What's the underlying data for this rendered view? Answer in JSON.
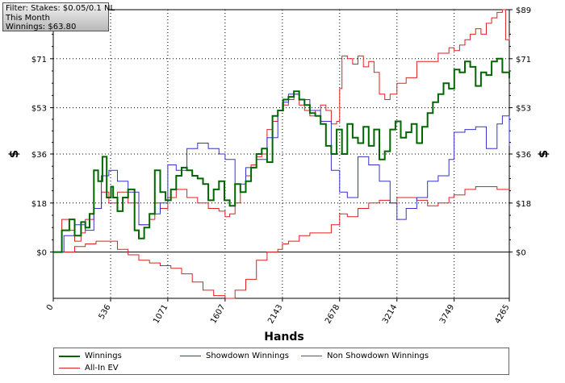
{
  "filter": {
    "line1": "Filter: Stakes: $0.05/0.1 NL",
    "line2": "This Month",
    "line3": "Winnings: $63.80"
  },
  "chart_data": {
    "type": "line",
    "xlabel": "Hands",
    "ylabel_left": "$",
    "ylabel_right": "$",
    "xlim": [
      0,
      4265
    ],
    "ylim": [
      -17,
      89
    ],
    "x_ticks": [
      0,
      536,
      1071,
      1607,
      2143,
      2678,
      3214,
      3749,
      4265
    ],
    "y_ticks": [
      0,
      18,
      36,
      53,
      71,
      89
    ],
    "y_tick_labels": [
      "$0",
      "$18",
      "$36",
      "$53",
      "$71",
      "$89"
    ],
    "grid": true,
    "legend_position": "bottom",
    "series": [
      {
        "name": "Winnings",
        "color": "#006600",
        "x": [
          0,
          80,
          150,
          200,
          260,
          300,
          340,
          380,
          420,
          460,
          500,
          540,
          560,
          600,
          650,
          700,
          760,
          800,
          850,
          900,
          950,
          1000,
          1050,
          1100,
          1150,
          1200,
          1250,
          1300,
          1350,
          1400,
          1450,
          1500,
          1550,
          1600,
          1650,
          1700,
          1750,
          1800,
          1850,
          1900,
          1950,
          2000,
          2050,
          2100,
          2150,
          2200,
          2250,
          2300,
          2350,
          2400,
          2450,
          2500,
          2550,
          2600,
          2650,
          2700,
          2750,
          2800,
          2850,
          2900,
          2950,
          3000,
          3050,
          3100,
          3150,
          3200,
          3250,
          3300,
          3350,
          3400,
          3450,
          3500,
          3550,
          3600,
          3650,
          3700,
          3750,
          3800,
          3850,
          3900,
          3950,
          4000,
          4050,
          4100,
          4150,
          4200,
          4265
        ],
        "y": [
          0,
          8,
          12,
          6,
          11,
          9,
          14,
          30,
          26,
          35,
          20,
          24,
          20,
          15,
          20,
          23,
          8,
          5,
          9,
          14,
          30,
          22,
          19,
          23,
          28,
          31,
          30,
          28,
          27,
          25,
          19,
          23,
          26,
          19,
          17,
          25,
          22,
          26,
          31,
          36,
          38,
          33,
          50,
          52,
          56,
          57,
          59,
          56,
          54,
          51,
          50,
          47,
          39,
          36,
          45,
          36,
          47,
          42,
          40,
          46,
          39,
          45,
          34,
          37,
          45,
          48,
          42,
          44,
          47,
          40,
          46,
          51,
          55,
          58,
          62,
          60,
          67,
          66,
          70,
          68,
          61,
          66,
          65,
          70,
          71,
          66,
          63.8
        ]
      },
      {
        "name": "Showdown Winnings",
        "color": "#3333cc",
        "x": [
          0,
          100,
          200,
          300,
          380,
          450,
          520,
          600,
          700,
          800,
          900,
          1000,
          1071,
          1150,
          1250,
          1350,
          1450,
          1550,
          1607,
          1700,
          1800,
          1900,
          2000,
          2100,
          2143,
          2200,
          2300,
          2400,
          2500,
          2600,
          2678,
          2750,
          2850,
          2950,
          3050,
          3150,
          3214,
          3300,
          3400,
          3500,
          3600,
          3700,
          3749,
          3850,
          3950,
          4050,
          4150,
          4200,
          4265
        ],
        "y": [
          0,
          6,
          10,
          8,
          16,
          28,
          30,
          26,
          22,
          10,
          14,
          18,
          32,
          30,
          38,
          40,
          38,
          36,
          34,
          25,
          31,
          34,
          42,
          52,
          55,
          58,
          56,
          52,
          48,
          30,
          22,
          20,
          35,
          32,
          26,
          18,
          12,
          16,
          20,
          26,
          28,
          34,
          44,
          45,
          46,
          38,
          47,
          50,
          39
        ]
      },
      {
        "name": "Non Showdown Winnings",
        "color": "#dd2222",
        "x": [
          0,
          100,
          200,
          300,
          400,
          500,
          600,
          700,
          800,
          900,
          1000,
          1100,
          1200,
          1300,
          1400,
          1500,
          1607,
          1700,
          1800,
          1900,
          2000,
          2100,
          2143,
          2200,
          2300,
          2400,
          2500,
          2600,
          2678,
          2750,
          2850,
          2950,
          3050,
          3150,
          3214,
          3300,
          3400,
          3500,
          3600,
          3700,
          3749,
          3850,
          3950,
          4050,
          4150,
          4200,
          4265
        ],
        "y": [
          0,
          0,
          2,
          3,
          4,
          4,
          1,
          -1,
          -3,
          -4,
          -5,
          -6,
          -8,
          -11,
          -14,
          -16,
          -17,
          -14,
          -10,
          -3,
          0,
          1,
          3,
          4,
          6,
          7,
          7,
          10,
          14,
          13,
          16,
          18,
          19,
          18,
          20,
          20,
          19,
          17,
          18,
          20,
          21,
          23,
          24,
          24,
          23,
          23,
          23
        ]
      },
      {
        "name": "All-In EV",
        "color": "#dd2222",
        "x": [
          0,
          80,
          150,
          200,
          260,
          300,
          380,
          450,
          520,
          600,
          700,
          800,
          900,
          950,
          1000,
          1071,
          1150,
          1250,
          1350,
          1450,
          1550,
          1607,
          1650,
          1700,
          1750,
          1800,
          1850,
          1900,
          1950,
          2000,
          2050,
          2100,
          2143,
          2200,
          2250,
          2300,
          2350,
          2400,
          2450,
          2500,
          2550,
          2600,
          2650,
          2678,
          2700,
          2750,
          2800,
          2850,
          2900,
          2950,
          3000,
          3050,
          3100,
          3150,
          3214,
          3300,
          3400,
          3500,
          3600,
          3700,
          3749,
          3800,
          3850,
          3900,
          3950,
          4000,
          4050,
          4100,
          4150,
          4200,
          4230,
          4265
        ],
        "y": [
          0,
          12,
          8,
          4,
          7,
          12,
          16,
          22,
          18,
          22,
          18,
          10,
          12,
          18,
          16,
          20,
          23,
          20,
          18,
          16,
          15,
          13,
          14,
          18,
          22,
          28,
          32,
          35,
          36,
          45,
          48,
          52,
          54,
          56,
          58,
          54,
          52,
          50,
          52,
          54,
          52,
          47,
          48,
          60,
          72,
          71,
          69,
          72,
          68,
          70,
          66,
          58,
          56,
          58,
          62,
          64,
          70,
          70,
          73,
          75,
          74,
          76,
          78,
          80,
          82,
          80,
          84,
          86,
          88,
          89,
          78,
          79
        ]
      }
    ]
  }
}
